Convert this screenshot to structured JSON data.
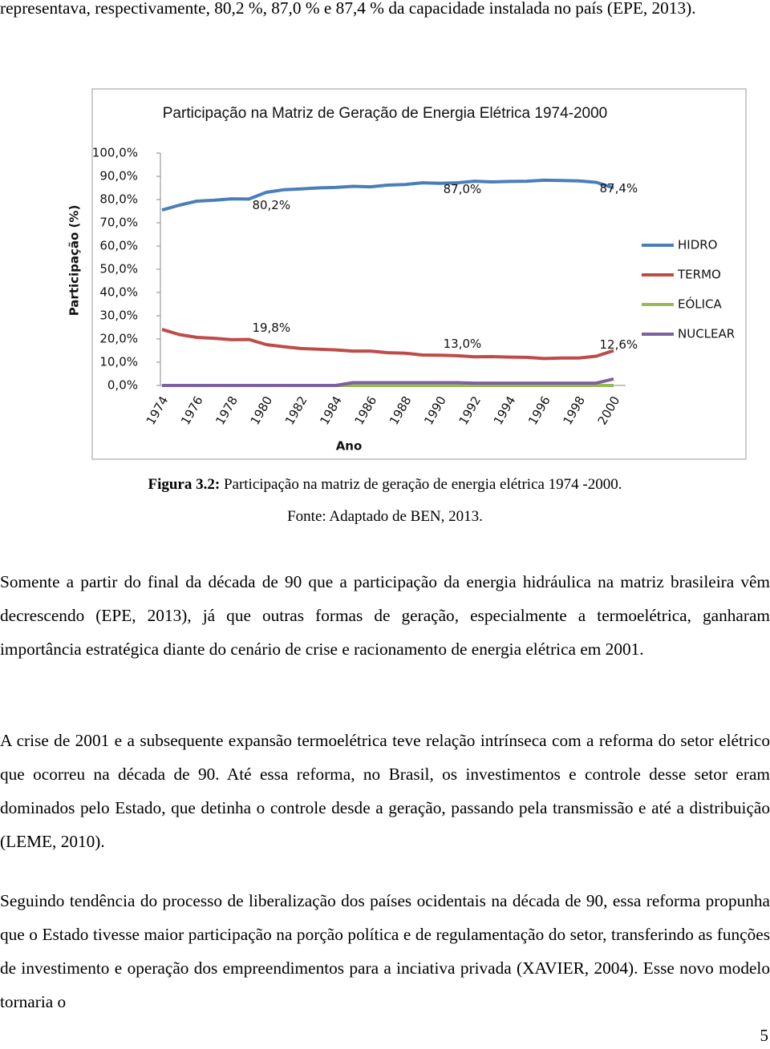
{
  "document": {
    "intro": "representava, respectivamente, 80,2 %, 87,0 % e 87,4 %  da capacidade instalada no país (EPE, 2013).",
    "caption_label": "Figura 3.2:",
    "caption_text": " Participação na matriz de geração de energia elétrica 1974 -2000.",
    "source": "Fonte: Adaptado de BEN, 2013.",
    "paragraphs": [
      "Somente a partir do final da década de 90 que a participação da energia hidráulica na matriz brasileira vêm decrescendo (EPE, 2013), já que outras formas de geração, especialmente a termoelétrica, ganharam importância estratégica diante do cenário de crise e racionamento de energia elétrica em 2001.",
      "A crise de 2001 e a subsequente expansão termoelétrica teve relação intrínseca com a reforma do setor elétrico que ocorreu na década de 90. Até essa reforma, no Brasil, os investimentos e controle desse setor eram dominados pelo Estado, que detinha o controle desde a geração, passando pela transmissão e até a distribuição (LEME, 2010).",
      "Seguindo tendência do processo de liberalização dos países ocidentais na década de 90, essa reforma propunha que o Estado tivesse maior participação na porção política e de regulamentação do setor, transferindo as funções de investimento e operação dos empreendimentos para a inciativa privada (XAVIER, 2004). Esse novo modelo tornaria o"
    ],
    "page_number": "5"
  },
  "chart_data": {
    "type": "line",
    "title": "Participação na Matriz de Geração de Energia Elétrica 1974-2000",
    "x_label": "Ano",
    "y_label": "Participação (%)",
    "categories": [
      "1974",
      null,
      "1976",
      null,
      "1978",
      null,
      "1980",
      null,
      "1982",
      null,
      "1984",
      null,
      "1986",
      null,
      "1988",
      null,
      "1990",
      null,
      "1992",
      null,
      "1994",
      null,
      "1996",
      null,
      "1998",
      null,
      "2000"
    ],
    "ylim": [
      0,
      100
    ],
    "yticks": [
      {
        "value": 0,
        "label": "0,0%"
      },
      {
        "value": 10,
        "label": "10,0%"
      },
      {
        "value": 20,
        "label": "20,0%"
      },
      {
        "value": 30,
        "label": "30,0%"
      },
      {
        "value": 40,
        "label": "40,0%"
      },
      {
        "value": 50,
        "label": "50,0%"
      },
      {
        "value": 60,
        "label": "60,0%"
      },
      {
        "value": 70,
        "label": "70,0%"
      },
      {
        "value": 80,
        "label": "80,0%"
      },
      {
        "value": 90,
        "label": "90,0%"
      },
      {
        "value": 100,
        "label": "100,0%"
      }
    ],
    "grid": false,
    "legend": "right",
    "series": [
      {
        "name": "HIDRO",
        "color": "#4a7ebb",
        "values": [
          75.5,
          77.6,
          79.3,
          79.7,
          80.3,
          80.2,
          83.1,
          84.2,
          84.6,
          85.0,
          85.2,
          85.7,
          85.5,
          86.2,
          86.5,
          87.2,
          87.0,
          87.2,
          87.9,
          87.6,
          87.8,
          87.9,
          88.3,
          88.2,
          88.0,
          87.4,
          85.0
        ],
        "value_labels": [
          null,
          null,
          null,
          null,
          null,
          "80,2%",
          null,
          null,
          null,
          null,
          null,
          null,
          null,
          null,
          null,
          null,
          "87,0%",
          null,
          null,
          null,
          null,
          null,
          null,
          null,
          null,
          "87,4%",
          null
        ]
      },
      {
        "name": "TERMO",
        "color": "#be4b48",
        "values": [
          24.1,
          21.9,
          20.7,
          20.3,
          19.7,
          19.8,
          17.6,
          16.7,
          15.9,
          15.6,
          15.3,
          14.8,
          14.8,
          14.1,
          13.9,
          13.1,
          13.0,
          12.8,
          12.3,
          12.4,
          12.2,
          12.1,
          11.6,
          11.8,
          11.8,
          12.6,
          15.0
        ],
        "value_labels": [
          null,
          null,
          null,
          null,
          null,
          "19,8%",
          null,
          null,
          null,
          null,
          null,
          null,
          null,
          null,
          null,
          null,
          "13,0%",
          null,
          null,
          null,
          null,
          null,
          null,
          null,
          null,
          "12,6%",
          null
        ]
      },
      {
        "name": "EÓLICA",
        "color": "#98b954",
        "values": [
          0,
          0,
          0,
          0,
          0,
          0,
          0,
          0,
          0,
          0,
          0,
          0,
          0,
          0,
          0,
          0,
          0,
          0,
          0,
          0,
          0,
          0,
          0,
          0,
          0,
          0,
          0
        ]
      },
      {
        "name": "NUCLEAR",
        "color": "#7d60a0",
        "values": [
          0,
          0,
          0,
          0,
          0,
          0,
          0,
          0,
          0,
          0,
          0,
          1.2,
          1.2,
          1.2,
          1.2,
          1.2,
          1.2,
          1.2,
          1.0,
          1.0,
          1.0,
          1.0,
          1.0,
          1.0,
          1.0,
          1.0,
          2.8
        ]
      }
    ]
  }
}
